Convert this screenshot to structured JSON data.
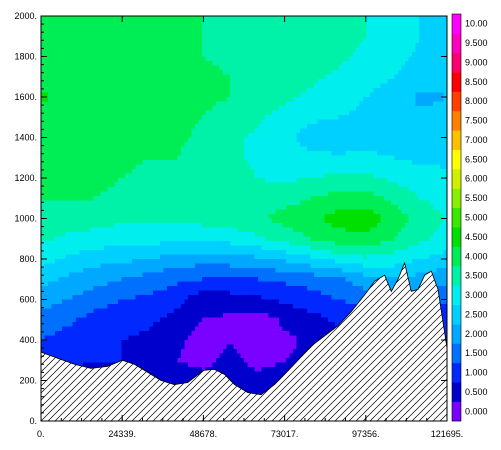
{
  "chart_data": {
    "type": "heatmap",
    "title": "",
    "xlabel": "",
    "ylabel": "",
    "xlim": [
      0,
      121695
    ],
    "ylim": [
      0,
      2000
    ],
    "x_tick_labels": [
      {
        "value": 0,
        "label": "0."
      },
      {
        "value": 24339,
        "label": "24339."
      },
      {
        "value": 48678,
        "label": "48678."
      },
      {
        "value": 73017,
        "label": "73017."
      },
      {
        "value": 97356,
        "label": "97356."
      },
      {
        "value": 121695,
        "label": "121695."
      }
    ],
    "y_tick_labels": [
      {
        "value": 0,
        "label": "0."
      },
      {
        "value": 200,
        "label": "200."
      },
      {
        "value": 400,
        "label": "400."
      },
      {
        "value": 600,
        "label": "600."
      },
      {
        "value": 800,
        "label": "800."
      },
      {
        "value": 1000,
        "label": "1000."
      },
      {
        "value": 1200,
        "label": "1200."
      },
      {
        "value": 1400,
        "label": "1400."
      },
      {
        "value": 1600,
        "label": "1600."
      },
      {
        "value": 1800,
        "label": "1800."
      },
      {
        "value": 2000,
        "label": "2000."
      }
    ],
    "colorbar": {
      "levels": [
        0.0,
        0.5,
        1.0,
        1.5,
        2.0,
        2.5,
        3.0,
        3.5,
        4.0,
        4.5,
        5.0,
        5.5,
        6.0,
        6.5,
        7.0,
        7.5,
        8.0,
        8.5,
        9.0,
        9.5,
        10.0
      ],
      "labels": [
        "0.000",
        "0.500",
        "1.000",
        "1.500",
        "2.000",
        "2.500",
        "3.000",
        "3.500",
        "4.000",
        "4.500",
        "5.000",
        "5.500",
        "6.000",
        "6.500",
        "7.000",
        "7.500",
        "8.000",
        "8.500",
        "9.000",
        "9.500",
        "10.00"
      ],
      "colors": [
        "#7a00ff",
        "#0000cd",
        "#0028ff",
        "#0070ff",
        "#00a8ff",
        "#00d0ff",
        "#00eeee",
        "#00f2a8",
        "#00ee55",
        "#00e000",
        "#38e800",
        "#88f000",
        "#d0f000",
        "#ffff00",
        "#ffc000",
        "#ff8000",
        "#ff4000",
        "#ff0000",
        "#ff0070",
        "#ff00c0",
        "#ff00ff"
      ]
    },
    "terrain_profile": {
      "x": [
        0,
        5000,
        10000,
        15000,
        20000,
        24339,
        28000,
        32000,
        36000,
        40000,
        44000,
        48678,
        52000,
        55000,
        58000,
        62000,
        66000,
        70000,
        73017,
        77000,
        81000,
        85000,
        89000,
        93000,
        97356,
        100000,
        103000,
        105000,
        107000,
        109000,
        111000,
        113000,
        115000,
        117000,
        119000,
        121695
      ],
      "y": [
        340,
        310,
        280,
        260,
        270,
        300,
        280,
        240,
        200,
        180,
        190,
        250,
        255,
        230,
        180,
        140,
        130,
        180,
        230,
        300,
        370,
        420,
        470,
        540,
        630,
        690,
        720,
        640,
        700,
        780,
        640,
        650,
        720,
        740,
        650,
        360
      ]
    },
    "field": {
      "x": [
        0,
        8113,
        16226,
        24339,
        32452,
        40565,
        48678,
        56791,
        64904,
        73017,
        81130,
        89243,
        97356,
        105469,
        113582,
        121695
      ],
      "y": [
        0,
        100,
        200,
        300,
        400,
        500,
        600,
        700,
        800,
        900,
        1000,
        1100,
        1200,
        1300,
        1400,
        1500,
        1600,
        1700,
        1800,
        1900,
        2000
      ],
      "values": [
        [
          0.9,
          0.8,
          0.7,
          0.8,
          0.9,
          0.8,
          0.6,
          0.7,
          0.8,
          0.7,
          0.8,
          0.9,
          1.0,
          1.0,
          0.9,
          0.8
        ],
        [
          0.9,
          0.8,
          0.7,
          0.8,
          0.9,
          0.8,
          0.6,
          0.7,
          0.8,
          0.7,
          0.8,
          0.9,
          1.0,
          1.0,
          0.9,
          0.8
        ],
        [
          1.0,
          0.9,
          0.8,
          0.9,
          0.8,
          0.7,
          0.6,
          0.7,
          0.6,
          0.6,
          0.7,
          0.8,
          1.0,
          1.1,
          1.0,
          0.9
        ],
        [
          1.2,
          1.1,
          1.0,
          1.0,
          0.8,
          0.5,
          0.4,
          0.6,
          0.4,
          0.5,
          0.6,
          0.8,
          1.0,
          1.1,
          1.0,
          0.9
        ],
        [
          1.5,
          1.3,
          1.1,
          1.0,
          0.9,
          0.6,
          0.3,
          0.5,
          0.2,
          0.4,
          0.6,
          0.9,
          1.1,
          1.2,
          1.1,
          1.0
        ],
        [
          1.8,
          1.6,
          1.3,
          1.2,
          1.1,
          0.8,
          0.5,
          0.4,
          0.2,
          0.6,
          0.8,
          1.1,
          1.3,
          1.4,
          1.3,
          1.2
        ],
        [
          2.2,
          2.0,
          1.7,
          1.5,
          1.4,
          1.2,
          0.6,
          0.8,
          0.9,
          1.1,
          1.3,
          1.5,
          1.7,
          1.9,
          1.7,
          1.6
        ],
        [
          2.7,
          2.4,
          2.2,
          2.0,
          1.8,
          1.6,
          1.5,
          1.4,
          1.5,
          1.6,
          1.7,
          1.9,
          2.3,
          2.5,
          2.3,
          2.1
        ],
        [
          3.2,
          2.9,
          2.7,
          2.6,
          2.5,
          2.3,
          2.2,
          2.3,
          2.4,
          2.6,
          2.9,
          3.2,
          3.4,
          3.3,
          3.0,
          2.8
        ],
        [
          3.6,
          3.4,
          3.3,
          3.2,
          3.2,
          3.1,
          3.1,
          3.2,
          3.4,
          3.7,
          4.0,
          4.3,
          4.4,
          4.0,
          3.6,
          3.3
        ],
        [
          3.9,
          3.8,
          3.7,
          3.6,
          3.6,
          3.6,
          3.7,
          3.8,
          3.9,
          4.2,
          4.4,
          4.7,
          4.8,
          4.3,
          3.8,
          3.5
        ],
        [
          4.0,
          4.0,
          4.0,
          3.9,
          3.8,
          3.8,
          3.8,
          3.8,
          3.7,
          3.8,
          4.0,
          4.2,
          4.2,
          3.9,
          3.5,
          3.3
        ],
        [
          4.1,
          4.1,
          4.1,
          4.0,
          3.9,
          3.9,
          3.8,
          3.7,
          3.5,
          3.4,
          3.5,
          3.6,
          3.6,
          3.4,
          3.2,
          3.1
        ],
        [
          4.2,
          4.2,
          4.2,
          4.1,
          4.0,
          4.0,
          3.8,
          3.6,
          3.4,
          3.2,
          3.1,
          3.1,
          3.1,
          3.0,
          2.9,
          2.9
        ],
        [
          4.2,
          4.2,
          4.2,
          4.2,
          4.1,
          4.1,
          3.9,
          3.6,
          3.4,
          3.1,
          2.8,
          2.6,
          2.8,
          2.8,
          2.7,
          2.8
        ],
        [
          4.2,
          4.3,
          4.3,
          4.3,
          4.2,
          4.1,
          4.0,
          3.8,
          3.6,
          3.3,
          3.1,
          3.0,
          2.9,
          2.8,
          2.6,
          2.6
        ],
        [
          4.6,
          4.3,
          4.3,
          4.3,
          4.2,
          4.2,
          4.1,
          4.0,
          3.8,
          3.6,
          3.4,
          3.2,
          3.0,
          2.8,
          2.4,
          2.5
        ],
        [
          4.2,
          4.3,
          4.3,
          4.3,
          4.3,
          4.2,
          4.1,
          4.0,
          3.9,
          3.8,
          3.6,
          3.4,
          3.2,
          3.0,
          2.7,
          2.6
        ],
        [
          4.1,
          4.2,
          4.3,
          4.3,
          4.2,
          4.2,
          4.0,
          3.9,
          3.9,
          3.8,
          3.8,
          3.6,
          3.4,
          3.2,
          2.9,
          2.8
        ],
        [
          4.1,
          4.2,
          4.2,
          4.2,
          4.1,
          4.1,
          4.0,
          3.9,
          3.8,
          3.8,
          3.8,
          3.7,
          3.5,
          3.3,
          3.0,
          2.9
        ],
        [
          4.1,
          4.1,
          4.2,
          4.2,
          4.1,
          4.0,
          4.0,
          3.9,
          3.8,
          3.8,
          3.8,
          3.7,
          3.5,
          3.3,
          3.0,
          2.9
        ]
      ]
    }
  }
}
